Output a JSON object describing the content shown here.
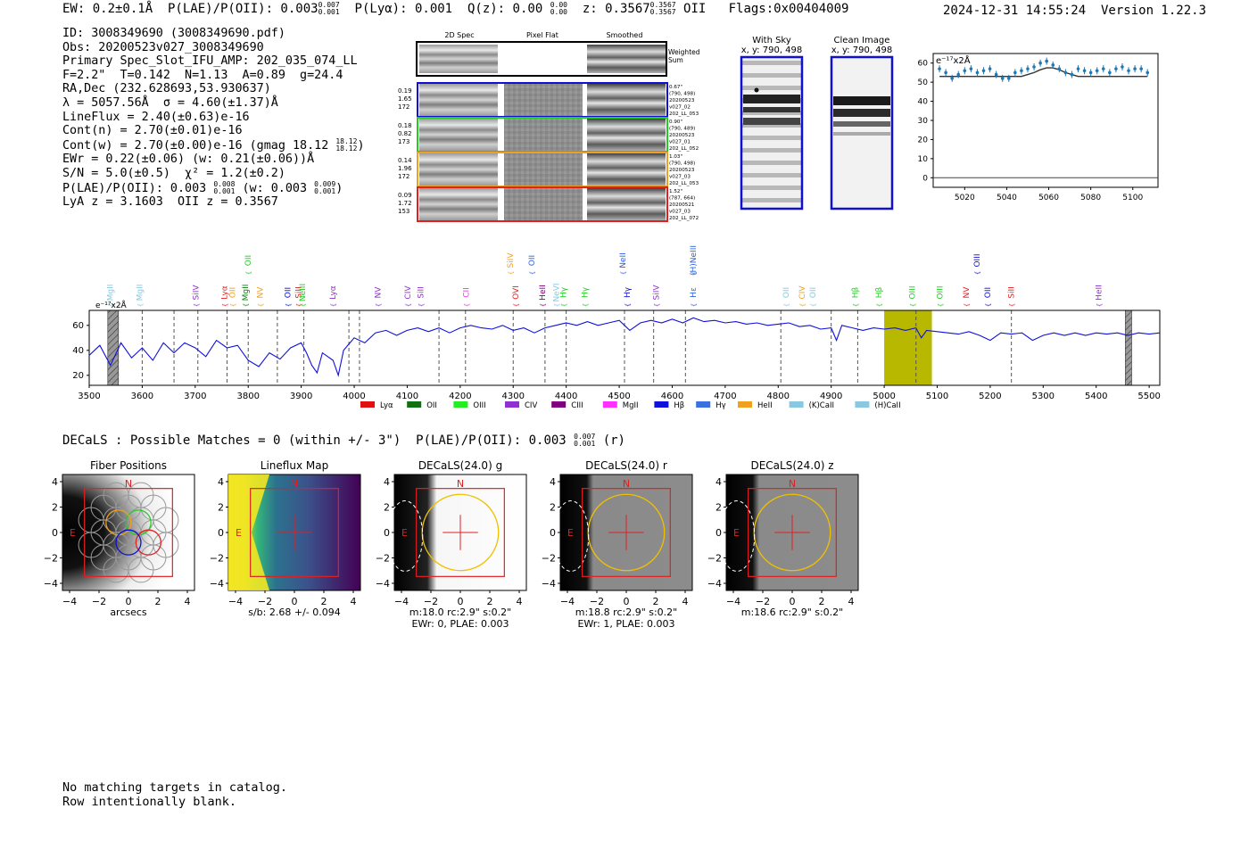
{
  "header": {
    "line": "EW: 0.2±0.1Å  P(LAE)/P(OII): 0.003",
    "ew_sup": "0.007",
    "ew_sub": "0.001",
    "plya": "P(Lyα): 0.001  Q(z): 0.00",
    "q_sup": "0.00",
    "q_sub": "0.00",
    "z": "z: 0.3567",
    "z_sup": "0.3567",
    "z_sub": "0.3567",
    "tail": "OII   Flags:0x00404009",
    "timestamp": "2024-12-31 14:55:24  Version 1.22.3"
  },
  "info": {
    "id": "ID: 3008349690 (3008349690.pdf)",
    "obs": "Obs: 20200523v027_3008349690",
    "slot": "Primary Spec_Slot_IFU_AMP: 202_035_074_LL",
    "params": "F=2.2\"  T=0.142  N=1.13  A=0.89  g=24.4",
    "radec": "RA,Dec (232.628693,53.930637)",
    "lambda": "λ = 5057.56Å  σ = 4.60(±1.37)Å",
    "lineflux": "LineFlux = 2.40(±0.63)e-16",
    "contn": "Cont(n) = 2.70(±0.01)e-16",
    "contw": "Cont(w) = 2.70(±0.00)e-16 (gmag 18.12",
    "contw_sup": "18.12",
    "contw_sub": "18.12",
    "ewr": "EWr = 0.22(±0.06) (w: 0.21(±0.06))Å",
    "sn": "S/N = 5.0(±0.5)  χ² = 1.2(±0.2)",
    "plae": "P(LAE)/P(OII): 0.003",
    "plae_sup": "0.008",
    "plae_sub": "0.001",
    "plae_w": "(w: 0.003",
    "plae_w_sup": "0.009",
    "plae_w_sub": "0.001",
    "lya": "LyA z = 3.1603  OII z = 0.3567"
  },
  "cutouts": {
    "col_2d": "2D Spec",
    "col_flat": "Pixel Flat",
    "col_smooth": "Smoothed",
    "weighted": "Weighted",
    "sum": "Sum",
    "rows": [
      {
        "v1": "0.19",
        "v2": "1.65",
        "v3": "172",
        "d1": "0.67\"",
        "d2": "(790, 498)",
        "d3": "20200523",
        "d4": "v027_02",
        "d5": "202_LL_053",
        "color": "#1010d0"
      },
      {
        "v1": "0.18",
        "v2": "0.82",
        "v3": "173",
        "d1": "0.90\"",
        "d2": "(790, 489)",
        "d3": "20200523",
        "d4": "v027_01",
        "d5": "202_LL_052",
        "color": "#22cc22"
      },
      {
        "v1": "0.14",
        "v2": "1.96",
        "v3": "172",
        "d1": "1.03\"",
        "d2": "(790, 498)",
        "d3": "20200523",
        "d4": "v027_03",
        "d5": "202_LL_053",
        "color": "#f0a020"
      },
      {
        "v1": "0.09",
        "v2": "1.72",
        "v3": "153",
        "d1": "1.52\"",
        "d2": "(787, 664)",
        "d3": "20200521",
        "d4": "v027_03",
        "d5": "202_LL_072",
        "color": "#e02020"
      }
    ]
  },
  "sky": {
    "title": "With Sky",
    "coords": "x, y: 790, 498"
  },
  "clean": {
    "title": "Clean Image",
    "coords": "x, y: 790, 498"
  },
  "zoom_chart": {
    "unit": "e⁻¹⁷x2Å",
    "yticks": [
      "0",
      "10",
      "20",
      "30",
      "40",
      "50",
      "60"
    ],
    "xticks": [
      "5020",
      "5040",
      "5060",
      "5080",
      "5100"
    ]
  },
  "chart_data": {
    "type": "line",
    "title": "",
    "ylabel": "e⁻¹⁷x2Å",
    "xlim": [
      3500,
      5520
    ],
    "ylim": [
      12,
      72
    ],
    "xticks": [
      3500,
      3600,
      3700,
      3800,
      3900,
      4000,
      4100,
      4200,
      4300,
      4400,
      4500,
      4600,
      4700,
      4800,
      4900,
      5000,
      5100,
      5200,
      5300,
      5400,
      5500
    ],
    "yticks": [
      20,
      40,
      60
    ],
    "series_color": "#1010dd",
    "spectrum": [
      [
        3500,
        36
      ],
      [
        3520,
        44
      ],
      [
        3540,
        28
      ],
      [
        3560,
        46
      ],
      [
        3580,
        34
      ],
      [
        3600,
        42
      ],
      [
        3620,
        32
      ],
      [
        3640,
        46
      ],
      [
        3660,
        38
      ],
      [
        3680,
        46
      ],
      [
        3700,
        42
      ],
      [
        3720,
        35
      ],
      [
        3740,
        48
      ],
      [
        3760,
        42
      ],
      [
        3780,
        44
      ],
      [
        3800,
        32
      ],
      [
        3820,
        27
      ],
      [
        3840,
        38
      ],
      [
        3860,
        33
      ],
      [
        3880,
        42
      ],
      [
        3900,
        46
      ],
      [
        3910,
        38
      ],
      [
        3920,
        28
      ],
      [
        3930,
        22
      ],
      [
        3940,
        38
      ],
      [
        3960,
        32
      ],
      [
        3970,
        20
      ],
      [
        3980,
        40
      ],
      [
        4000,
        50
      ],
      [
        4020,
        46
      ],
      [
        4040,
        54
      ],
      [
        4060,
        56
      ],
      [
        4080,
        52
      ],
      [
        4100,
        56
      ],
      [
        4120,
        58
      ],
      [
        4140,
        55
      ],
      [
        4160,
        58
      ],
      [
        4180,
        54
      ],
      [
        4200,
        58
      ],
      [
        4220,
        60
      ],
      [
        4240,
        58
      ],
      [
        4260,
        57
      ],
      [
        4280,
        60
      ],
      [
        4300,
        56
      ],
      [
        4320,
        58
      ],
      [
        4340,
        54
      ],
      [
        4360,
        58
      ],
      [
        4380,
        60
      ],
      [
        4400,
        62
      ],
      [
        4420,
        60
      ],
      [
        4440,
        63
      ],
      [
        4460,
        60
      ],
      [
        4480,
        62
      ],
      [
        4500,
        64
      ],
      [
        4520,
        56
      ],
      [
        4540,
        62
      ],
      [
        4560,
        64
      ],
      [
        4580,
        62
      ],
      [
        4600,
        65
      ],
      [
        4620,
        62
      ],
      [
        4640,
        66
      ],
      [
        4660,
        63
      ],
      [
        4680,
        64
      ],
      [
        4700,
        62
      ],
      [
        4720,
        63
      ],
      [
        4740,
        61
      ],
      [
        4760,
        62
      ],
      [
        4780,
        60
      ],
      [
        4800,
        61
      ],
      [
        4820,
        62
      ],
      [
        4840,
        59
      ],
      [
        4860,
        60
      ],
      [
        4880,
        57
      ],
      [
        4900,
        58
      ],
      [
        4910,
        48
      ],
      [
        4920,
        60
      ],
      [
        4940,
        58
      ],
      [
        4960,
        56
      ],
      [
        4980,
        58
      ],
      [
        5000,
        57
      ],
      [
        5020,
        58
      ],
      [
        5040,
        56
      ],
      [
        5060,
        58
      ],
      [
        5070,
        50
      ],
      [
        5080,
        56
      ],
      [
        5100,
        55
      ],
      [
        5120,
        54
      ],
      [
        5140,
        53
      ],
      [
        5160,
        55
      ],
      [
        5180,
        52
      ],
      [
        5200,
        48
      ],
      [
        5220,
        54
      ],
      [
        5240,
        53
      ],
      [
        5260,
        54
      ],
      [
        5280,
        48
      ],
      [
        5300,
        52
      ],
      [
        5320,
        54
      ],
      [
        5340,
        52
      ],
      [
        5360,
        54
      ],
      [
        5380,
        52
      ],
      [
        5400,
        54
      ],
      [
        5420,
        53
      ],
      [
        5440,
        54
      ],
      [
        5460,
        52
      ],
      [
        5480,
        54
      ],
      [
        5500,
        53
      ],
      [
        5520,
        54
      ]
    ],
    "zoom": {
      "xlim": [
        5005,
        5112
      ],
      "ylim": [
        -5,
        65
      ],
      "x": [
        5008,
        5011,
        5014,
        5017,
        5020,
        5023,
        5026,
        5029,
        5032,
        5035,
        5038,
        5041,
        5044,
        5047,
        5050,
        5053,
        5056,
        5059,
        5062,
        5065,
        5068,
        5071,
        5074,
        5077,
        5080,
        5083,
        5086,
        5089,
        5092,
        5095,
        5098,
        5101,
        5104,
        5107
      ],
      "y": [
        57,
        55,
        52,
        54,
        56,
        57,
        55,
        56,
        57,
        54,
        52,
        52,
        55,
        56,
        57,
        58,
        60,
        61,
        59,
        57,
        55,
        54,
        57,
        56,
        55,
        56,
        57,
        55,
        57,
        58,
        56,
        57,
        57,
        55
      ],
      "model": [
        53,
        53,
        53,
        53,
        53,
        53,
        53,
        53,
        53,
        53,
        53,
        53,
        53,
        53,
        54,
        55,
        56.5,
        57.5,
        57.5,
        56.5,
        55,
        54,
        53,
        53,
        53,
        53,
        53,
        53,
        53,
        53,
        53,
        53,
        53,
        53
      ]
    },
    "line_markers": [
      {
        "label": "MgII",
        "x": 3545,
        "color": "#88c8e0",
        "row": "low"
      },
      {
        "label": "MgII",
        "x": 3600,
        "color": "#88c8e0",
        "row": "low"
      },
      {
        "label": "SiIV",
        "x": 3706,
        "color": "#9030d0",
        "row": "low"
      },
      {
        "label": "Lyα",
        "x": 3760,
        "color": "#e02020",
        "row": "low"
      },
      {
        "label": "OII",
        "x": 3775,
        "color": "#f0a020",
        "row": "low"
      },
      {
        "label": "MgII",
        "x": 3800,
        "color": "#108010",
        "row": "low"
      },
      {
        "label": "OII",
        "x": 3805,
        "color": "#22cc22",
        "row": "high"
      },
      {
        "label": "NV",
        "x": 3827,
        "color": "#f0a020",
        "row": "low"
      },
      {
        "label": "OII",
        "x": 3880,
        "color": "#1010d0",
        "row": "low"
      },
      {
        "label": "SiII",
        "x": 3900,
        "color": "#e02020",
        "row": "low"
      },
      {
        "label": "NeIII",
        "x": 3907,
        "color": "#22cc22",
        "row": "low"
      },
      {
        "label": "Lyα",
        "x": 3965,
        "color": "#9030d0",
        "row": "low"
      },
      {
        "label": "NV",
        "x": 4050,
        "color": "#9030d0",
        "row": "low"
      },
      {
        "label": "CIV",
        "x": 4106,
        "color": "#9030d0",
        "row": "low"
      },
      {
        "label": "SiII",
        "x": 4130,
        "color": "#9030d0",
        "row": "low"
      },
      {
        "label": "CII",
        "x": 4216,
        "color": "#e040e0",
        "row": "low"
      },
      {
        "label": "SiIV",
        "x": 4300,
        "color": "#f0a020",
        "row": "high"
      },
      {
        "label": "OVI",
        "x": 4310,
        "color": "#e02020",
        "row": "low"
      },
      {
        "label": "OII",
        "x": 4340,
        "color": "#3060e0",
        "row": "high"
      },
      {
        "label": "HeII",
        "x": 4360,
        "color": "#800080",
        "row": "low"
      },
      {
        "label": "NeVI",
        "x": 4386,
        "color": "#88c8e0",
        "row": "low"
      },
      {
        "label": "Hγ",
        "x": 4400,
        "color": "#22cc22",
        "row": "low"
      },
      {
        "label": "Hγ",
        "x": 4440,
        "color": "#22cc22",
        "row": "low"
      },
      {
        "label": "NeII",
        "x": 4512,
        "color": "#3060e0",
        "row": "high"
      },
      {
        "label": "Hγ",
        "x": 4520,
        "color": "#1010d0",
        "row": "low"
      },
      {
        "label": "SiIV",
        "x": 4575,
        "color": "#9030d0",
        "row": "low"
      },
      {
        "label": "(H)NeIII",
        "x": 4645,
        "color": "#3060e0",
        "row": "high"
      },
      {
        "label": "Hε",
        "x": 4645,
        "color": "#3060e0",
        "row": "low"
      },
      {
        "label": "OII",
        "x": 4820,
        "color": "#88c8e0",
        "row": "low"
      },
      {
        "label": "CIV",
        "x": 4850,
        "color": "#f0a020",
        "row": "low"
      },
      {
        "label": "OII",
        "x": 4870,
        "color": "#88c8e0",
        "row": "low"
      },
      {
        "label": "Hβ",
        "x": 4950,
        "color": "#22cc22",
        "row": "low"
      },
      {
        "label": "Hβ",
        "x": 4995,
        "color": "#22cc22",
        "row": "low"
      },
      {
        "label": "OIII",
        "x": 5058,
        "color": "#22cc22",
        "row": "low"
      },
      {
        "label": "OIII",
        "x": 5110,
        "color": "#22cc22",
        "row": "low"
      },
      {
        "label": "NV",
        "x": 5160,
        "color": "#e02020",
        "row": "low"
      },
      {
        "label": "OIII",
        "x": 5180,
        "color": "#1010d0",
        "row": "high"
      },
      {
        "label": "OII",
        "x": 5200,
        "color": "#1010d0",
        "row": "low"
      },
      {
        "label": "SiII",
        "x": 5245,
        "color": "#e02020",
        "row": "low"
      },
      {
        "label": "HeII",
        "x": 5410,
        "color": "#9030d0",
        "row": "low"
      }
    ],
    "dashed_lines": [
      3555,
      3600,
      3660,
      3705,
      3760,
      3800,
      3855,
      3905,
      3990,
      4010,
      4160,
      4210,
      4300,
      4360,
      4400,
      4510,
      4565,
      4625,
      4805,
      4900,
      4950,
      5060,
      5240
    ],
    "shaded": [
      {
        "x0": 5000,
        "x1": 5090,
        "color": "#b8b800"
      }
    ],
    "hatched": [
      {
        "x0": 3535,
        "x1": 3555
      },
      {
        "x0": 5455,
        "x1": 5467
      }
    ],
    "legend": [
      {
        "label": "Lyα",
        "color": "#e01010"
      },
      {
        "label": "OII",
        "color": "#107010"
      },
      {
        "label": "OIII",
        "color": "#22ee22"
      },
      {
        "label": "CIV",
        "color": "#9030d0"
      },
      {
        "label": "CIII",
        "color": "#800080"
      },
      {
        "label": "MgII",
        "color": "#ff30ff"
      },
      {
        "label": "Hβ",
        "color": "#1010dd"
      },
      {
        "label": "Hγ",
        "color": "#3a70e0"
      },
      {
        "label": "HeII",
        "color": "#f0a020"
      },
      {
        "label": "(K)CaII",
        "color": "#88c8e0"
      },
      {
        "label": "(H)CaII",
        "color": "#88c8e0"
      }
    ]
  },
  "decals": {
    "line": "DECaLS : Possible Matches = 0 (within +/- 3\")  P(LAE)/P(OII): 0.003",
    "sup": "0.007",
    "sub": "0.001",
    "tail": "(r)"
  },
  "panels": [
    {
      "title": "Fiber Positions",
      "caption1": "arcsecs",
      "caption2": ""
    },
    {
      "title": "Lineflux Map",
      "caption1": "s/b: 2.68 +/- 0.094",
      "caption2": ""
    },
    {
      "title": "DECaLS(24.0) g",
      "caption1": "m:18.0 rc:2.9\"  s:0.2\"",
      "caption2": "EWr: 0, PLAE: 0.003"
    },
    {
      "title": "DECaLS(24.0) r",
      "caption1": "m:18.8 rc:2.9\"  s:0.2\"",
      "caption2": "EWr: 1, PLAE: 0.003"
    },
    {
      "title": "DECaLS(24.0) z",
      "caption1": "m:18.6 rc:2.9\"  s:0.2\"",
      "caption2": ""
    }
  ],
  "panel_ticks": [
    "4",
    "2",
    "0",
    "−2",
    "−4"
  ],
  "panel_xticks": [
    "−4",
    "−2",
    "0",
    "2",
    "4"
  ],
  "compass": {
    "n": "N",
    "e": "E"
  },
  "footer": {
    "line1": "No matching targets in catalog.",
    "line2": "Row intentionally blank."
  }
}
